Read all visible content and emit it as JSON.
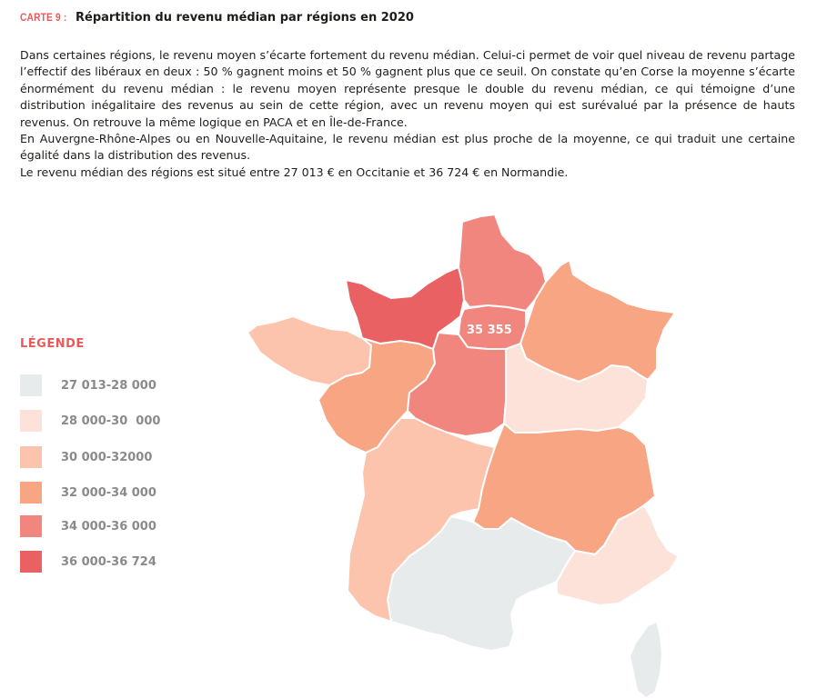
{
  "title": {
    "tag": "CARTE 9 :",
    "text": "Répartition du revenu médian par régions en 2020"
  },
  "paragraphs": [
    "Dans certaines régions, le revenu moyen s’écarte fortement du revenu médian. Celui-ci permet de voir quel niveau de revenu partage l’effectif des libéraux en deux : 50 % gagnent moins et 50 % gagnent plus que ce seuil. On constate qu’en Corse la moyenne s’écarte énormément du revenu médian : le revenu moyen représente presque le double du revenu médian, ce qui témoigne d’une distribution inégalitaire des revenus au sein de cette région, avec un revenu moyen qui est surévalué par la présence de hauts revenus. On retrouve la même logique en PACA et en Île-de-France.",
    "En Auvergne-Rhône-Alpes ou en Nouvelle-Aquitaine, le revenu médian est plus proche de la moyenne, ce qui traduit une certaine égalité dans la distribution des revenus.",
    "Le revenu médian des régions est situé entre 27 013 € en Occitanie et 36 724 € en Normandie."
  ],
  "legend": {
    "title": "LÉGENDE",
    "items": [
      {
        "label": "27 013-28 000",
        "color": "#e8ebeb"
      },
      {
        "label": "28 000-30  000",
        "color": "#fde2d9"
      },
      {
        "label": "30 000-32000",
        "color": "#fcc4ac"
      },
      {
        "label": "32 000-34 000",
        "color": "#f8a584"
      },
      {
        "label": "34 000-36 000",
        "color": "#f0867e"
      },
      {
        "label": "36 000-36 724",
        "color": "#e96163"
      }
    ]
  },
  "map": {
    "label_idf": "35 355",
    "regions": [
      {
        "name": "Hauts-de-France",
        "class": 4
      },
      {
        "name": "Normandie",
        "class": 5
      },
      {
        "name": "Île-de-France",
        "class": 4
      },
      {
        "name": "Grand Est",
        "class": 3
      },
      {
        "name": "Bretagne",
        "class": 2
      },
      {
        "name": "Pays de la Loire",
        "class": 3
      },
      {
        "name": "Centre-Val de Loire",
        "class": 4
      },
      {
        "name": "Bourgogne-Franche-Comté",
        "class": 1
      },
      {
        "name": "Nouvelle-Aquitaine",
        "class": 2
      },
      {
        "name": "Auvergne-Rhône-Alpes",
        "class": 3
      },
      {
        "name": "Occitanie",
        "class": 0
      },
      {
        "name": "Provence-Alpes-Côte d'Azur",
        "class": 1
      },
      {
        "name": "Corse",
        "class": 0
      }
    ]
  }
}
